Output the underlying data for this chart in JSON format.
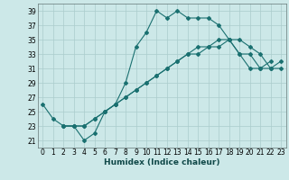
{
  "xlabel": "Humidex (Indice chaleur)",
  "background_color": "#cce8e8",
  "grid_color": "#aacccc",
  "line_color": "#1a7070",
  "xlim": [
    -0.5,
    23.5
  ],
  "ylim": [
    20.0,
    40.0
  ],
  "yticks": [
    21,
    23,
    25,
    27,
    29,
    31,
    33,
    35,
    37,
    39
  ],
  "xticks": [
    0,
    1,
    2,
    3,
    4,
    5,
    6,
    7,
    8,
    9,
    10,
    11,
    12,
    13,
    14,
    15,
    16,
    17,
    18,
    19,
    20,
    21,
    22,
    23
  ],
  "line1_x": [
    0,
    1,
    2,
    3,
    4,
    5,
    6,
    7,
    8,
    9,
    10,
    11,
    12,
    13,
    14,
    15,
    16,
    17,
    18,
    19,
    20,
    21,
    22
  ],
  "line1_y": [
    26,
    24,
    23,
    23,
    21,
    22,
    25,
    26,
    29,
    34,
    36,
    39,
    38,
    39,
    38,
    38,
    38,
    37,
    35,
    33,
    31,
    31,
    32
  ],
  "line2_x": [
    2,
    3,
    4,
    5,
    6,
    7,
    8,
    9,
    10,
    11,
    12,
    13,
    14,
    15,
    16,
    17,
    18,
    19,
    20,
    21,
    22,
    23
  ],
  "line2_y": [
    23,
    23,
    23,
    24,
    25,
    26,
    27,
    28,
    29,
    30,
    31,
    32,
    33,
    33,
    34,
    34,
    35,
    33,
    33,
    31,
    31,
    31
  ],
  "line3_x": [
    2,
    3,
    4,
    5,
    6,
    7,
    8,
    9,
    10,
    11,
    12,
    13,
    14,
    15,
    16,
    17,
    18,
    19,
    20,
    21,
    22,
    23
  ],
  "line3_y": [
    23,
    23,
    23,
    24,
    25,
    26,
    27,
    28,
    29,
    30,
    31,
    32,
    33,
    34,
    34,
    35,
    35,
    35,
    34,
    33,
    31,
    32
  ]
}
